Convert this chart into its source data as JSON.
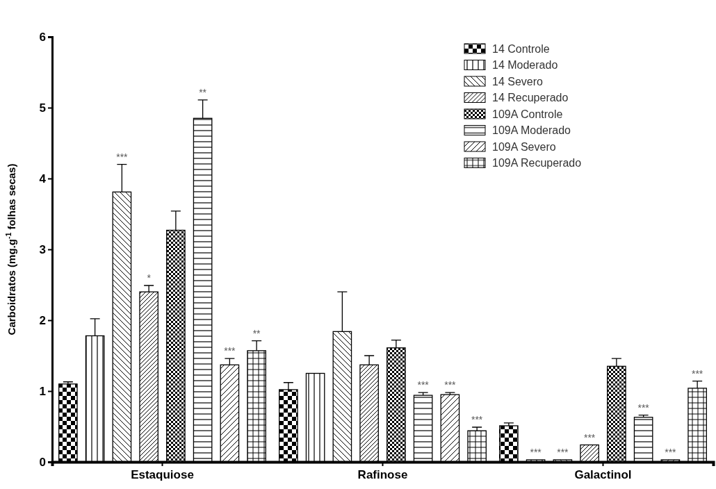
{
  "chart_data": {
    "type": "bar",
    "ylabel": "Carboidratos (mg.g$^{-1}$ folhas secas)",
    "categories": [
      "Estaquiose",
      "Rafinose",
      "Galactinol"
    ],
    "ylim": [
      0,
      6
    ],
    "yticks": [
      0,
      1,
      2,
      3,
      4,
      5,
      6
    ],
    "grid": false,
    "legend": "top right",
    "series": [
      {
        "name": "14 Controle",
        "color": "#000000",
        "values": [
          1.1,
          1.02,
          0.51
        ],
        "errors": [
          0.03,
          0.1,
          0.04
        ]
      },
      {
        "name": "14 Moderado",
        "color": "#000000",
        "values": [
          1.78,
          1.25,
          0.03
        ],
        "errors": [
          0.24,
          null,
          null
        ],
        "value_labels": [
          null,
          null,
          "***"
        ]
      },
      {
        "name": "14 Severo",
        "color": "#000000",
        "values": [
          3.81,
          1.84,
          0.03
        ],
        "errors": [
          0.39,
          0.56,
          null
        ],
        "value_labels": [
          "***",
          null,
          "***"
        ]
      },
      {
        "name": "14 Recuperado",
        "color": "#000000",
        "values": [
          2.4,
          1.37,
          0.24
        ],
        "errors": [
          0.09,
          0.13,
          null
        ],
        "value_labels": [
          "*",
          null,
          "***"
        ]
      },
      {
        "name": "109A Controle",
        "color": "#000000",
        "values": [
          3.27,
          1.61,
          1.35
        ],
        "errors": [
          0.27,
          0.11,
          0.11
        ]
      },
      {
        "name": "109A Moderado",
        "color": "#000000",
        "values": [
          4.85,
          0.94,
          0.63
        ],
        "errors": [
          0.26,
          0.04,
          0.03
        ],
        "value_labels": [
          "**",
          "***",
          "***"
        ]
      },
      {
        "name": "109A Severo",
        "color": "#000000",
        "values": [
          1.37,
          0.95,
          0.03
        ],
        "errors": [
          0.09,
          0.03,
          null
        ],
        "value_labels": [
          "***",
          "***",
          "***"
        ]
      },
      {
        "name": "109A Recuperado",
        "color": "#000000",
        "values": [
          1.57,
          0.44,
          1.04
        ],
        "errors": [
          0.14,
          0.05,
          0.1
        ],
        "value_labels": [
          "**",
          "***",
          "***"
        ]
      }
    ]
  }
}
